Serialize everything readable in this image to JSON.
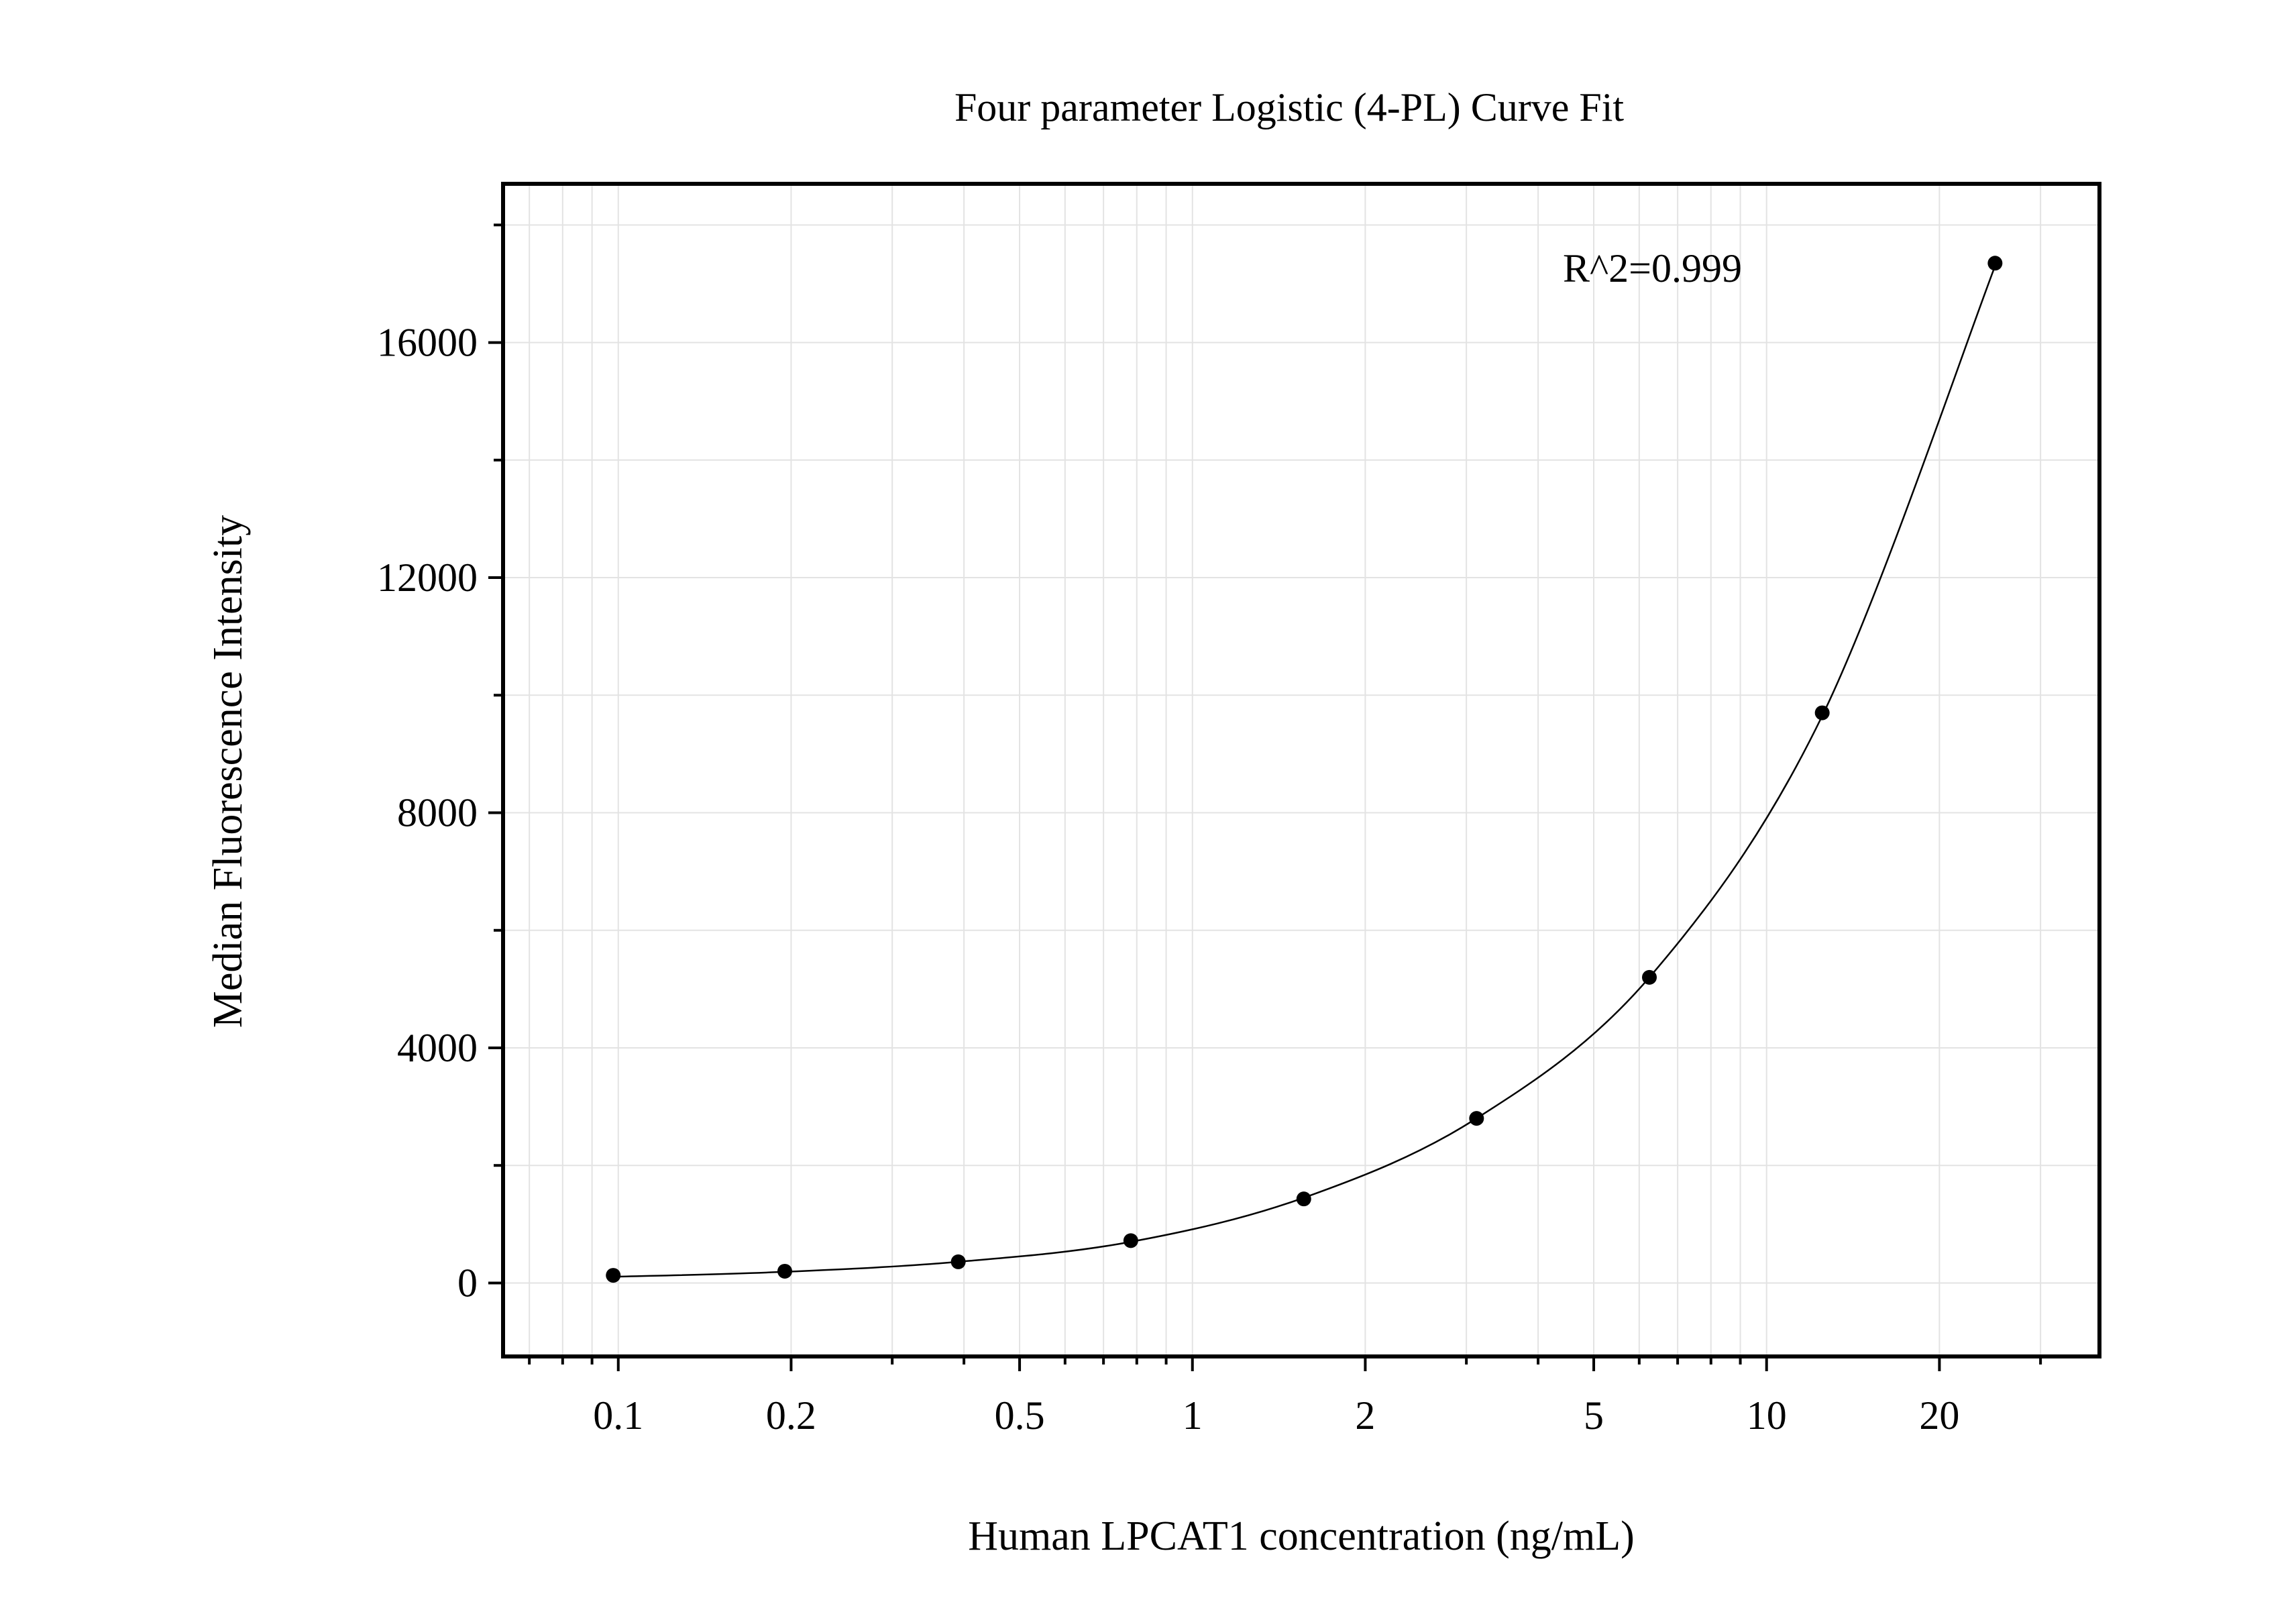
{
  "chart_data": {
    "type": "scatter",
    "title": "Four parameter Logistic (4-PL) Curve Fit",
    "xlabel": "Human LPCAT1 concentration (ng/mL)",
    "ylabel": "Median Fluorescence Intensity",
    "x_scale": "log",
    "xlim": [
      0.063,
      38
    ],
    "ylim": [
      -1250,
      18700
    ],
    "grid": true,
    "x_ticks": [
      0.1,
      0.2,
      0.5,
      1,
      2,
      5,
      10,
      20
    ],
    "x_tick_labels": [
      "0.1",
      "0.2",
      "0.5",
      "1",
      "2",
      "5",
      "10",
      "20"
    ],
    "y_ticks": [
      0,
      4000,
      8000,
      12000,
      16000
    ],
    "y_tick_labels": [
      "0",
      "4000",
      "8000",
      "12000",
      "16000"
    ],
    "annotation": "R^2=0.999",
    "series": [
      {
        "type": "scatter",
        "x": [
          0.098,
          0.195,
          0.391,
          0.781,
          1.563,
          3.125,
          6.25,
          12.5,
          25
        ],
        "y": [
          130,
          200,
          360,
          720,
          1430,
          2800,
          5200,
          9700,
          17350
        ]
      },
      {
        "type": "line",
        "x": [
          0.098,
          0.195,
          0.391,
          0.781,
          1.563,
          3.125,
          6.25,
          12.5,
          25
        ],
        "y": [
          105,
          190,
          360,
          700,
          1450,
          2800,
          5200,
          9650,
          17300
        ]
      }
    ],
    "colors": {
      "points": "#000000",
      "curve": "#000000",
      "grid": "#e3e3e3",
      "frame": "#000000"
    }
  }
}
